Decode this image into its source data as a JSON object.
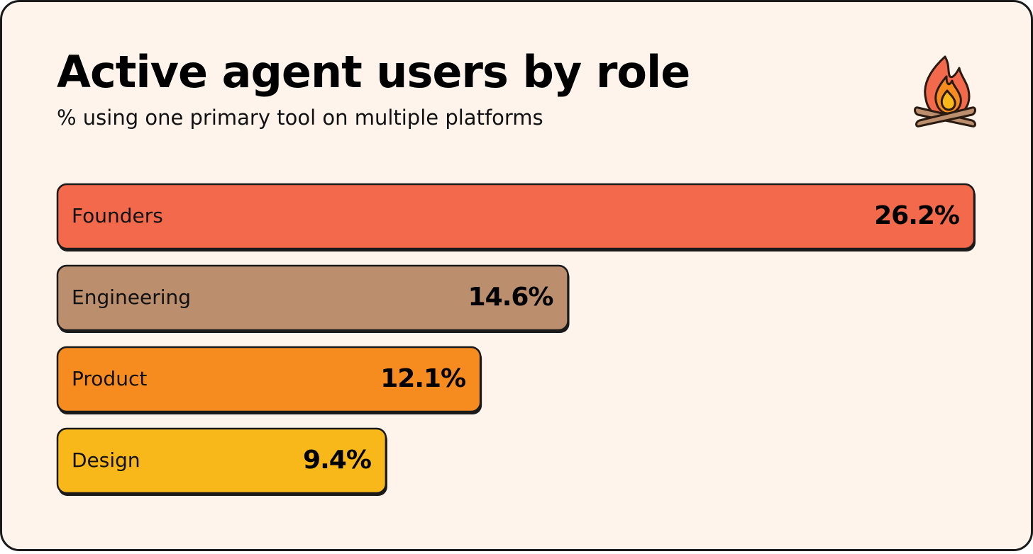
{
  "chart_data": {
    "type": "bar",
    "orientation": "horizontal",
    "title": "Active agent users by role",
    "subtitle": "% using one primary tool on multiple platforms",
    "categories": [
      "Founders",
      "Engineering",
      "Product",
      "Design"
    ],
    "values": [
      26.2,
      14.6,
      12.1,
      9.4
    ],
    "value_labels": [
      "26.2%",
      "14.6%",
      "12.1%",
      "9.4%"
    ],
    "colors": [
      "#f26a4b",
      "#bb8f6e",
      "#f68b1f",
      "#f8b81a"
    ]
  }
}
